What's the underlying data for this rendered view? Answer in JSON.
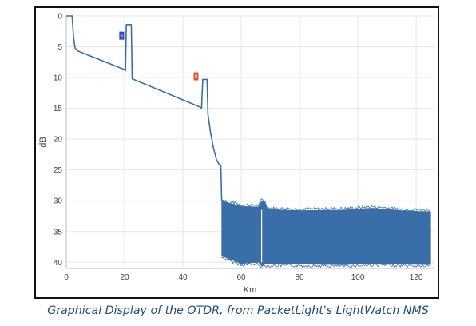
{
  "chart_data": {
    "type": "line",
    "title": "",
    "xlabel": "Km",
    "ylabel": "dB",
    "xlim": [
      0,
      126
    ],
    "ylim": [
      0,
      41
    ],
    "y_inverted": true,
    "grid": true,
    "x_ticks": [
      0,
      20,
      40,
      60,
      80,
      100,
      120
    ],
    "y_ticks": [
      0,
      5,
      10,
      15,
      20,
      25,
      30,
      35,
      40
    ],
    "series": [
      {
        "color": "#3a6ea8",
        "points": [
          [
            0,
            0
          ],
          [
            2,
            0
          ],
          [
            2.5,
            3.5
          ],
          [
            3,
            5.2
          ],
          [
            4,
            5.7
          ],
          [
            20,
            8.7
          ],
          [
            20.3,
            8.9
          ],
          [
            20.6,
            1.4
          ],
          [
            22.3,
            1.4
          ],
          [
            22.6,
            10.2
          ],
          [
            46,
            14.8
          ],
          [
            46.4,
            15
          ],
          [
            46.8,
            10.3
          ],
          [
            48.3,
            10.3
          ],
          [
            48.6,
            16
          ],
          [
            49.5,
            19
          ],
          [
            50.5,
            21.5
          ],
          [
            51.5,
            23.3
          ],
          [
            52.5,
            24.2
          ],
          [
            53,
            24.2
          ],
          [
            53.3,
            30
          ]
        ]
      },
      {
        "color": "#3a6ea8",
        "fill_band": true,
        "upper": [
          [
            53.3,
            30
          ],
          [
            60,
            30.9
          ],
          [
            66,
            31
          ],
          [
            67,
            30
          ],
          [
            68,
            30.2
          ],
          [
            69,
            31.4
          ],
          [
            80,
            31.6
          ],
          [
            95,
            31.5
          ],
          [
            105,
            31.2
          ],
          [
            115,
            31.6
          ],
          [
            125,
            31.8
          ]
        ],
        "lower": [
          [
            53.3,
            39
          ],
          [
            60,
            40.2
          ],
          [
            66,
            40
          ],
          [
            67,
            40.6
          ],
          [
            68,
            40.3
          ],
          [
            80,
            40.3
          ],
          [
            95,
            40.4
          ],
          [
            105,
            40.2
          ],
          [
            115,
            40.3
          ],
          [
            125,
            40.4
          ]
        ]
      }
    ],
    "event_markers": [
      {
        "x": 19,
        "y": 3.2,
        "color": "#3344cc",
        "text": "R"
      },
      {
        "x": 44.5,
        "y": 9.8,
        "color": "#e05530",
        "text": "R"
      }
    ]
  },
  "caption": "Graphical Display of the OTDR, from PacketLight's LightWatch NMS"
}
